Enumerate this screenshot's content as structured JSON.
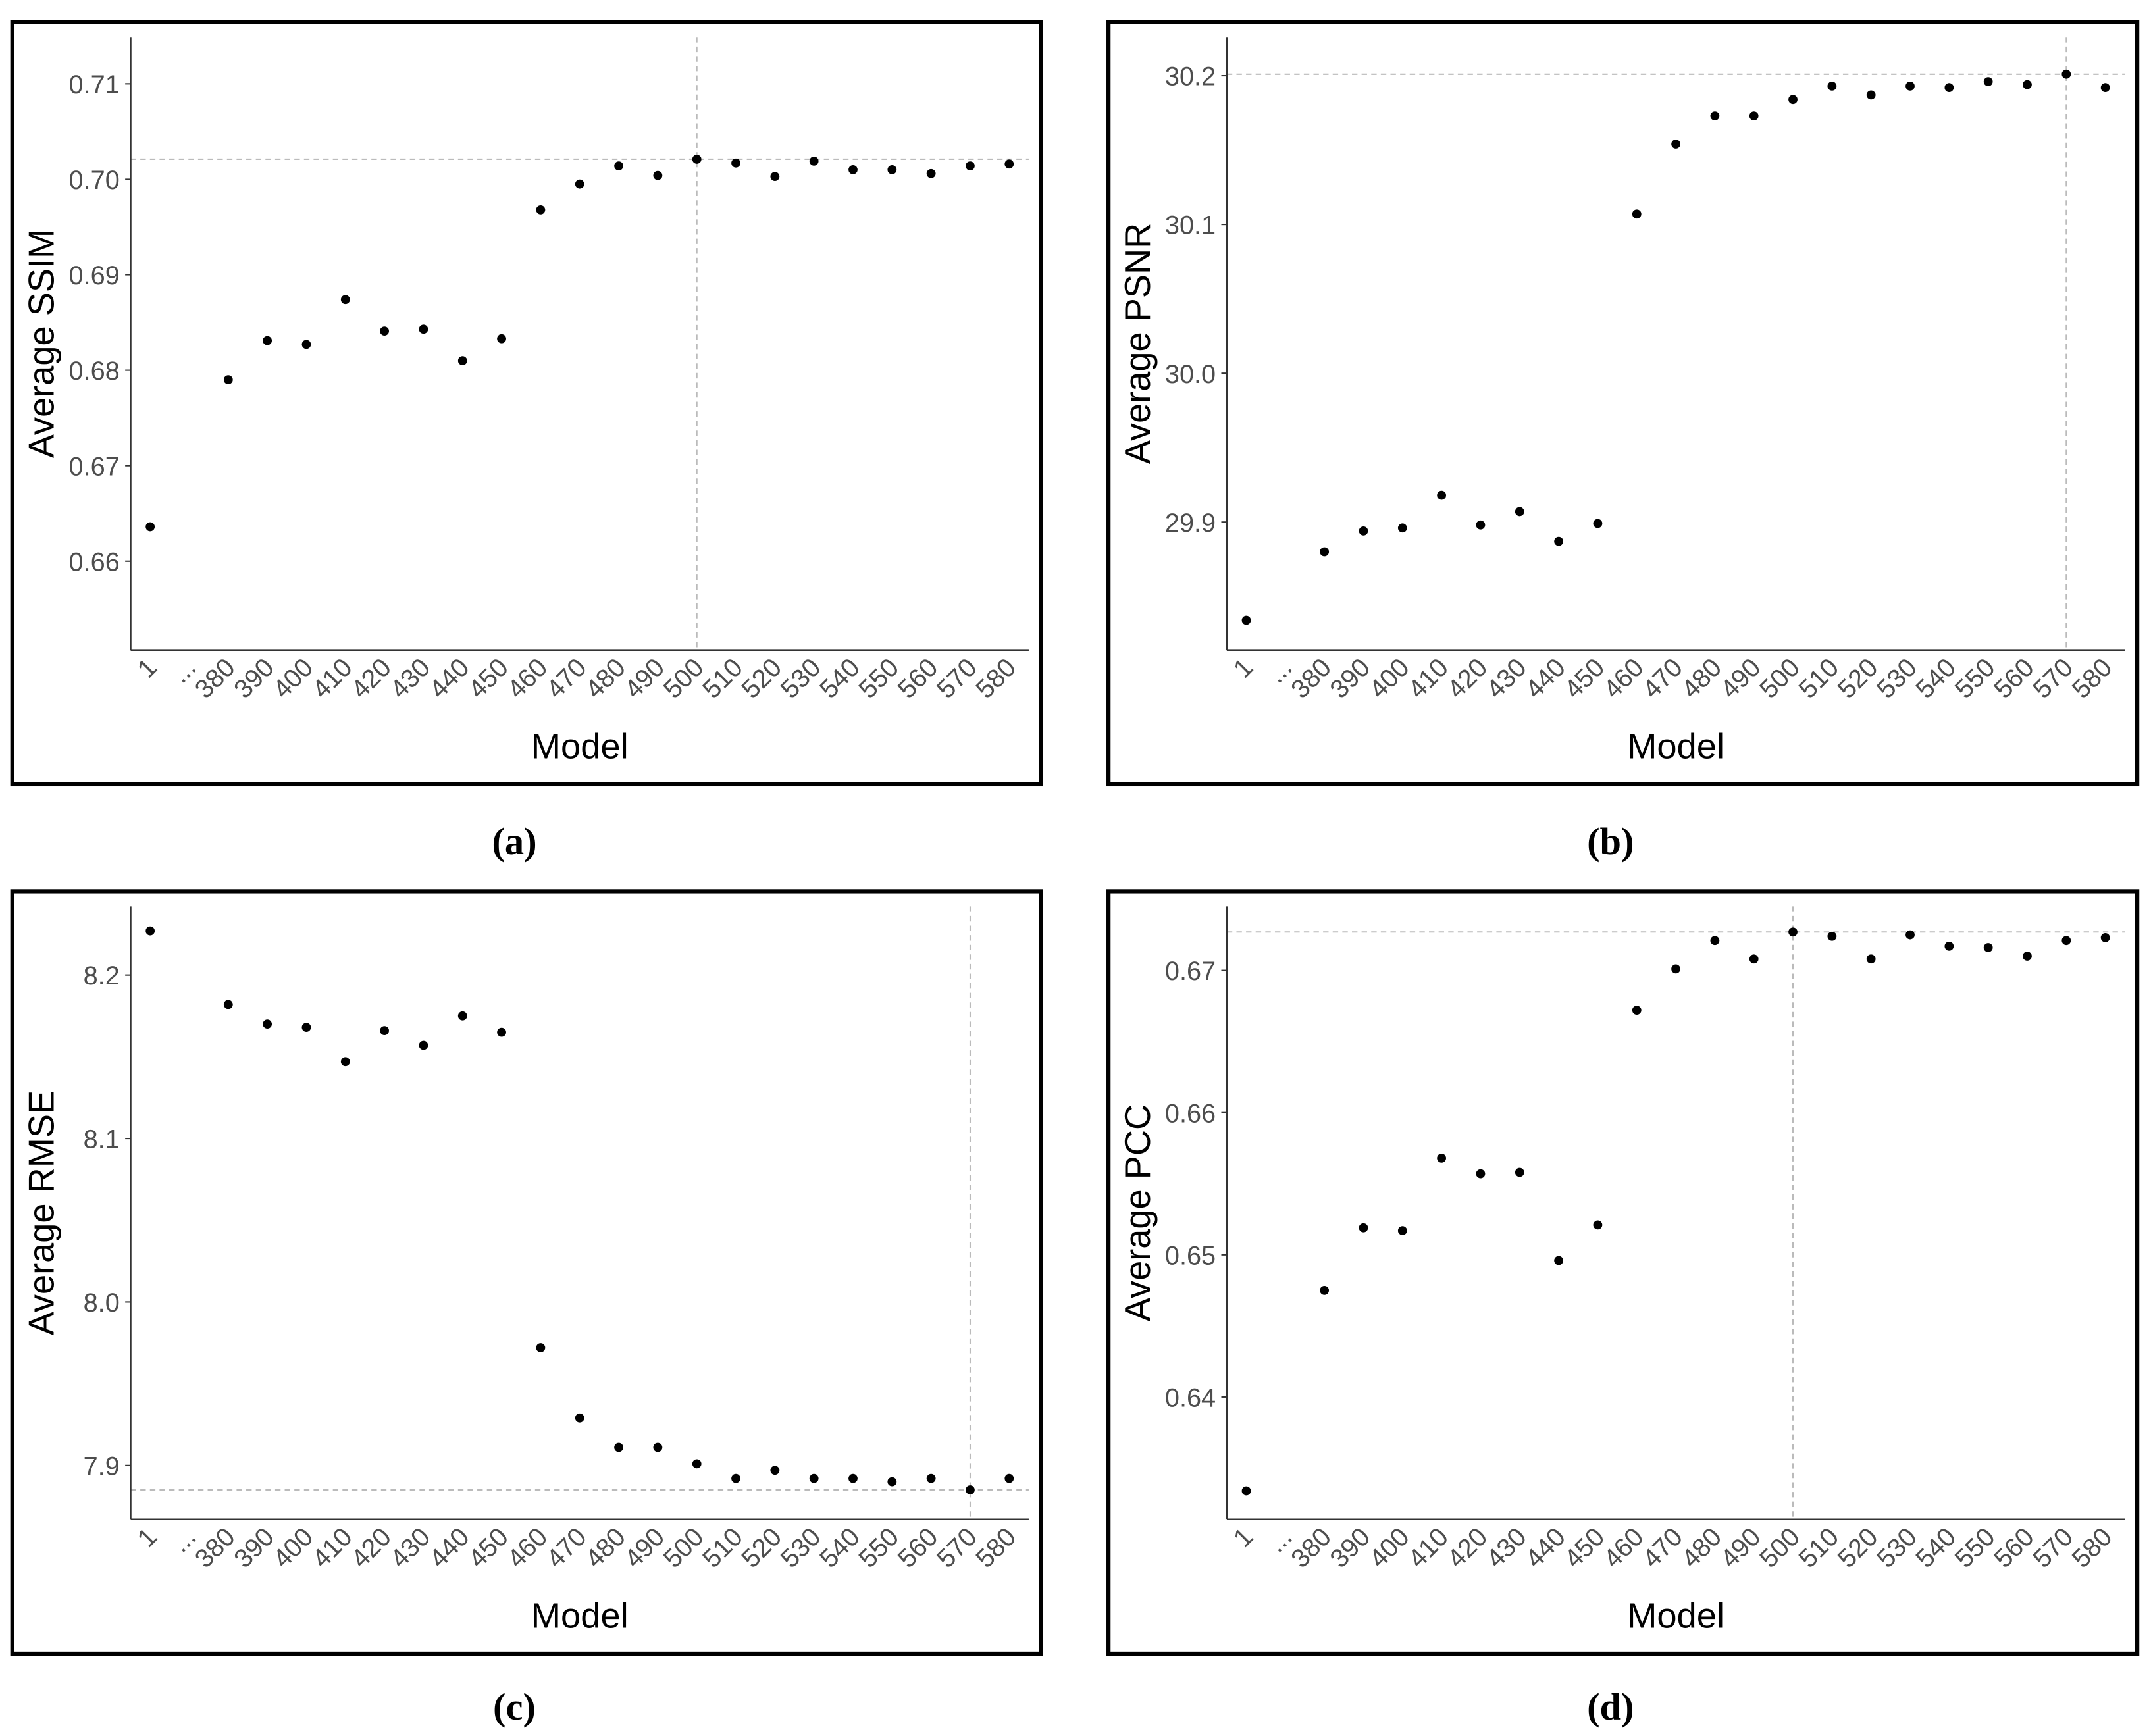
{
  "chart_data": [
    {
      "type": "scatter",
      "caption": "(a)",
      "x_label": "Model",
      "y_label": "Average SSIM",
      "categories": [
        "1",
        "...",
        "380",
        "390",
        "400",
        "410",
        "420",
        "430",
        "440",
        "450",
        "460",
        "470",
        "480",
        "490",
        "500",
        "510",
        "520",
        "530",
        "540",
        "550",
        "560",
        "570",
        "580"
      ],
      "values": [
        0.6636,
        null,
        0.679,
        0.6831,
        0.6827,
        0.6874,
        0.6841,
        0.6843,
        0.681,
        0.6833,
        0.6968,
        0.6995,
        0.7014,
        0.7004,
        0.7021,
        0.7017,
        0.7003,
        0.7019,
        0.701,
        0.701,
        0.7006,
        0.7014,
        0.7016
      ],
      "color": "#000000",
      "ylim": [
        0.6507,
        0.7149
      ],
      "yticks": [
        0.66,
        0.67,
        0.68,
        0.69,
        {
          "value": 0.7,
          "label": "0.70"
        },
        0.71
      ],
      "hline": 0.7021,
      "vline": "500"
    },
    {
      "type": "scatter",
      "caption": "(b)",
      "x_label": "Model",
      "y_label": "Average PSNR",
      "categories": [
        "1",
        "...",
        "380",
        "390",
        "400",
        "410",
        "420",
        "430",
        "440",
        "450",
        "460",
        "470",
        "480",
        "490",
        "500",
        "510",
        "520",
        "530",
        "540",
        "550",
        "560",
        "570",
        "580"
      ],
      "values": [
        29.834,
        null,
        29.88,
        29.894,
        29.896,
        29.918,
        29.898,
        29.907,
        29.887,
        29.899,
        30.107,
        30.154,
        30.173,
        30.173,
        30.184,
        30.193,
        30.187,
        30.193,
        30.192,
        30.196,
        30.194,
        30.201,
        30.192
      ],
      "color": "#000000",
      "ylim": [
        29.814,
        30.226
      ],
      "yticks": [
        29.9,
        {
          "value": 30,
          "label": "30.0"
        },
        30.1,
        30.2
      ],
      "hline": 30.201,
      "vline": "570"
    },
    {
      "type": "scatter",
      "caption": "(c)",
      "x_label": "Model",
      "y_label": "Average RMSE",
      "categories": [
        "1",
        "...",
        "380",
        "390",
        "400",
        "410",
        "420",
        "430",
        "440",
        "450",
        "460",
        "470",
        "480",
        "490",
        "500",
        "510",
        "520",
        "530",
        "540",
        "550",
        "560",
        "570",
        "580"
      ],
      "values": [
        8.227,
        null,
        8.182,
        8.17,
        8.168,
        8.147,
        8.166,
        8.157,
        8.175,
        8.165,
        7.972,
        7.929,
        7.911,
        7.911,
        7.901,
        7.892,
        7.897,
        7.892,
        7.892,
        7.89,
        7.892,
        7.885,
        7.892
      ],
      "color": "#000000",
      "ylim": [
        7.867,
        8.242
      ],
      "yticks": [
        7.9,
        {
          "value": 8,
          "label": "8.0"
        },
        8.1,
        8.2
      ],
      "hline": 7.885,
      "vline": "570"
    },
    {
      "type": "scatter",
      "caption": "(d)",
      "x_label": "Model",
      "y_label": "Average PCC",
      "categories": [
        "1",
        "...",
        "380",
        "390",
        "400",
        "410",
        "420",
        "430",
        "440",
        "450",
        "460",
        "470",
        "480",
        "490",
        "500",
        "510",
        "520",
        "530",
        "540",
        "550",
        "560",
        "570",
        "580"
      ],
      "values": [
        0.6334,
        null,
        0.6475,
        0.6519,
        0.6517,
        0.6568,
        0.6557,
        0.6558,
        0.6496,
        0.6521,
        0.6672,
        0.6701,
        0.6721,
        0.6708,
        0.6727,
        0.6724,
        0.6708,
        0.6725,
        0.6717,
        0.6716,
        0.671,
        0.6721,
        0.6723
      ],
      "color": "#000000",
      "ylim": [
        0.6314,
        0.6745
      ],
      "yticks": [
        0.64,
        0.65,
        0.66,
        0.67
      ],
      "hline": 0.6727,
      "vline": "500"
    }
  ]
}
